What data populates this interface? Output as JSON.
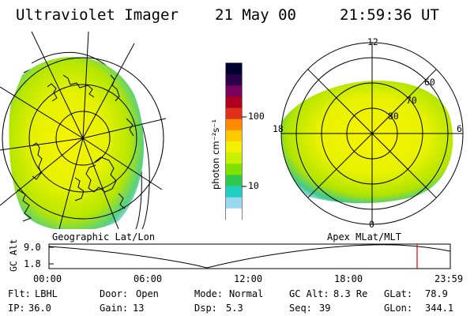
{
  "header": {
    "title": "Ultraviolet Imager",
    "date": "21 May 00",
    "time": "21:59:36 UT"
  },
  "colorbar": {
    "unit_label": "photon cm⁻²s⁻¹",
    "ticks": [
      "100",
      "10"
    ],
    "colors": [
      "#000030",
      "#2a0048",
      "#7a0060",
      "#b00020",
      "#e0301c",
      "#ff8a00",
      "#ffc800",
      "#f0f000",
      "#c8f000",
      "#80e000",
      "#30c850",
      "#20d0c0",
      "#9ad8f0",
      "#ffffff"
    ]
  },
  "geo_panel": {
    "label": "Geographic Lat/Lon"
  },
  "apex_panel": {
    "label": "Apex MLat/MLT",
    "mlt_labels": [
      "12",
      "18",
      "6",
      "0"
    ],
    "mlat_labels": [
      "60",
      "70",
      "80"
    ]
  },
  "altitude_plot": {
    "ylabel": "GC Alt",
    "y_ticks": [
      "9.0",
      "1.8"
    ],
    "x_ticks": [
      "00:00",
      "06:00",
      "12:00",
      "18:00",
      "23:59"
    ],
    "current_time_marker": "21:59:36"
  },
  "info": {
    "row1": [
      {
        "key": "Flt:",
        "value": "LBHL"
      },
      {
        "key": "Door:",
        "value": "Open"
      },
      {
        "key": "Mode:",
        "value": "Normal"
      },
      {
        "key": "GC Alt:",
        "value": "8.3 Re"
      },
      {
        "key": "GLat:",
        "value": "78.9"
      }
    ],
    "row2": [
      {
        "key": "IP:",
        "value": "36.0"
      },
      {
        "key": "Gain:",
        "value": "13"
      },
      {
        "key": "Dsp:",
        "value": "5.3"
      },
      {
        "key": "Seq:",
        "value": "39"
      },
      {
        "key": "GLon:",
        "value": "344.1"
      }
    ]
  },
  "colors": {
    "aurora_core": "#f5f000",
    "aurora_mid": "#b8e800",
    "aurora_edge": "#30c8a0",
    "marker": "#e00000"
  }
}
